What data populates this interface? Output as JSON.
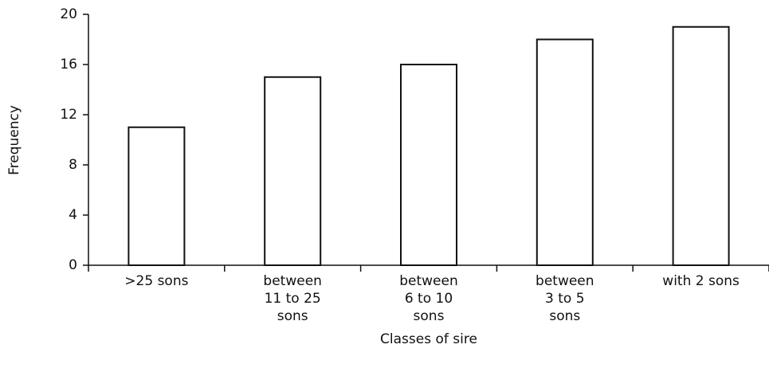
{
  "chart_data": {
    "type": "bar",
    "x_label": "Classes of sire",
    "y_label": "Frequency",
    "categories": [
      ">25 sons",
      "between\n11 to 25\nsons",
      "between\n6 to 10\nsons",
      "between\n3 to 5\nsons",
      "with 2 sons"
    ],
    "values": [
      11,
      15,
      16,
      18,
      19
    ],
    "color": "#ffffff",
    "ylim": [
      0,
      20
    ],
    "yticks": [
      0,
      4,
      8,
      12,
      16,
      20
    ],
    "grid": false
  }
}
